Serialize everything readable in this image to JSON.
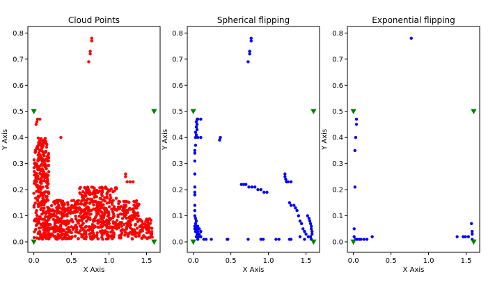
{
  "chart_data": [
    {
      "type": "scatter",
      "title": "Cloud Points",
      "xlabel": "X Axis",
      "ylabel": "Y Axis",
      "xlim": [
        -0.08,
        1.68
      ],
      "ylim": [
        -0.04,
        0.825
      ],
      "xticks": [
        "0.0",
        "0.5",
        "1.0",
        "1.5"
      ],
      "yticks": [
        "0.0",
        "0.1",
        "0.2",
        "0.3",
        "0.4",
        "0.5",
        "0.6",
        "0.7",
        "0.8"
      ],
      "grid": false,
      "series": [
        {
          "color": "#ff0000",
          "marker": "circle",
          "regions": [
            {
              "x0": 0.0,
              "x1": 0.2,
              "y0": 0.01,
              "y1": 0.4,
              "n": 320
            },
            {
              "x0": 0.2,
              "x1": 0.6,
              "y0": 0.01,
              "y1": 0.16,
              "n": 230
            },
            {
              "x0": 0.6,
              "x1": 1.1,
              "y0": 0.01,
              "y1": 0.21,
              "n": 360
            },
            {
              "x0": 1.1,
              "x1": 1.4,
              "y0": 0.01,
              "y1": 0.16,
              "n": 140
            },
            {
              "x0": 1.4,
              "x1": 1.58,
              "y0": 0.01,
              "y1": 0.09,
              "n": 60
            }
          ],
          "points": [
            [
              0.77,
              0.78
            ],
            [
              0.77,
              0.77
            ],
            [
              0.75,
              0.73
            ],
            [
              0.75,
              0.72
            ],
            [
              0.73,
              0.69
            ],
            [
              0.36,
              0.4
            ],
            [
              1.22,
              0.26
            ],
            [
              1.22,
              0.25
            ],
            [
              1.24,
              0.23
            ],
            [
              1.28,
              0.23
            ],
            [
              1.32,
              0.23
            ],
            [
              0.03,
              0.45
            ],
            [
              0.04,
              0.46
            ],
            [
              0.05,
              0.47
            ],
            [
              0.08,
              0.47
            ]
          ]
        },
        {
          "color": "#008000",
          "marker": "triangle-down",
          "points": [
            [
              0.0,
              0.5
            ],
            [
              1.6,
              0.5
            ],
            [
              0.0,
              0.0
            ],
            [
              1.6,
              0.0
            ]
          ]
        }
      ]
    },
    {
      "type": "scatter",
      "title": "Spherical flipping",
      "xlabel": "X Axis",
      "ylabel": "Y Axis",
      "xlim": [
        -0.08,
        1.68
      ],
      "ylim": [
        -0.04,
        0.825
      ],
      "xticks": [
        "0.0",
        "0.5",
        "1.0",
        "1.5"
      ],
      "yticks": [
        "0.0",
        "0.1",
        "0.2",
        "0.3",
        "0.4",
        "0.5",
        "0.6",
        "0.7",
        "0.8"
      ],
      "grid": false,
      "series": [
        {
          "color": "#0000ff",
          "marker": "circle",
          "points": [
            [
              0.77,
              0.78
            ],
            [
              0.77,
              0.77
            ],
            [
              0.75,
              0.73
            ],
            [
              0.75,
              0.72
            ],
            [
              0.73,
              0.69
            ],
            [
              0.05,
              0.47
            ],
            [
              0.06,
              0.47
            ],
            [
              0.1,
              0.47
            ],
            [
              0.04,
              0.46
            ],
            [
              0.05,
              0.45
            ],
            [
              0.04,
              0.44
            ],
            [
              0.05,
              0.43
            ],
            [
              0.03,
              0.42
            ],
            [
              0.04,
              0.41
            ],
            [
              0.03,
              0.4
            ],
            [
              0.06,
              0.4
            ],
            [
              0.1,
              0.4
            ],
            [
              0.36,
              0.4
            ],
            [
              0.35,
              0.39
            ],
            [
              0.03,
              0.37
            ],
            [
              0.02,
              0.35
            ],
            [
              0.02,
              0.34
            ],
            [
              0.02,
              0.31
            ],
            [
              0.02,
              0.26
            ],
            [
              0.02,
              0.21
            ],
            [
              0.02,
              0.19
            ],
            [
              0.02,
              0.18
            ],
            [
              0.02,
              0.14
            ],
            [
              0.02,
              0.12
            ],
            [
              0.02,
              0.1
            ],
            [
              0.03,
              0.09
            ],
            [
              0.04,
              0.08
            ],
            [
              0.03,
              0.07
            ],
            [
              0.02,
              0.06
            ],
            [
              0.04,
              0.06
            ],
            [
              0.06,
              0.06
            ],
            [
              0.02,
              0.05
            ],
            [
              0.05,
              0.05
            ],
            [
              0.08,
              0.05
            ],
            [
              0.03,
              0.04
            ],
            [
              0.06,
              0.04
            ],
            [
              0.1,
              0.04
            ],
            [
              0.05,
              0.03
            ],
            [
              0.08,
              0.03
            ],
            [
              0.04,
              0.02
            ],
            [
              0.07,
              0.02
            ],
            [
              0.1,
              0.02
            ],
            [
              0.06,
              0.01
            ],
            [
              0.14,
              0.01
            ],
            [
              0.17,
              0.01
            ],
            [
              0.24,
              0.01
            ],
            [
              0.45,
              0.01
            ],
            [
              0.46,
              0.01
            ],
            [
              0.73,
              0.01
            ],
            [
              0.9,
              0.01
            ],
            [
              0.93,
              0.01
            ],
            [
              1.1,
              0.01
            ],
            [
              1.14,
              0.01
            ],
            [
              1.28,
              0.01
            ],
            [
              1.3,
              0.01
            ],
            [
              0.64,
              0.22
            ],
            [
              0.67,
              0.22
            ],
            [
              0.7,
              0.22
            ],
            [
              0.74,
              0.21
            ],
            [
              0.78,
              0.21
            ],
            [
              0.82,
              0.21
            ],
            [
              0.86,
              0.2
            ],
            [
              0.9,
              0.2
            ],
            [
              0.94,
              0.19
            ],
            [
              0.98,
              0.19
            ],
            [
              1.22,
              0.26
            ],
            [
              1.22,
              0.25
            ],
            [
              1.23,
              0.24
            ],
            [
              1.24,
              0.23
            ],
            [
              1.26,
              0.23
            ],
            [
              1.3,
              0.23
            ],
            [
              1.28,
              0.15
            ],
            [
              1.3,
              0.14
            ],
            [
              1.34,
              0.14
            ],
            [
              1.36,
              0.13
            ],
            [
              1.38,
              0.12
            ],
            [
              1.4,
              0.1
            ],
            [
              1.42,
              0.08
            ],
            [
              1.44,
              0.07
            ],
            [
              1.46,
              0.05
            ],
            [
              1.48,
              0.04
            ],
            [
              1.52,
              0.1
            ],
            [
              1.54,
              0.09
            ],
            [
              1.55,
              0.08
            ],
            [
              1.56,
              0.07
            ],
            [
              1.57,
              0.06
            ],
            [
              1.57,
              0.05
            ],
            [
              1.58,
              0.04
            ],
            [
              1.58,
              0.03
            ],
            [
              1.56,
              0.02
            ],
            [
              1.53,
              0.02
            ],
            [
              1.5,
              0.03
            ],
            [
              1.48,
              0.01
            ],
            [
              1.42,
              0.02
            ],
            [
              1.57,
              0.01
            ]
          ]
        },
        {
          "color": "#008000",
          "marker": "triangle-down",
          "points": [
            [
              0.0,
              0.5
            ],
            [
              1.6,
              0.5
            ],
            [
              0.0,
              0.0
            ],
            [
              1.6,
              0.0
            ]
          ]
        }
      ]
    },
    {
      "type": "scatter",
      "title": "Exponential flipping",
      "xlabel": "X Axis",
      "ylabel": "Y Axis",
      "xlim": [
        -0.08,
        1.68
      ],
      "ylim": [
        -0.04,
        0.825
      ],
      "xticks": [
        "0.0",
        "0.5",
        "1.0",
        "1.5"
      ],
      "yticks": [
        "0.0",
        "0.1",
        "0.2",
        "0.3",
        "0.4",
        "0.5",
        "0.6",
        "0.7",
        "0.8"
      ],
      "grid": false,
      "series": [
        {
          "color": "#0000ff",
          "marker": "circle",
          "points": [
            [
              0.77,
              0.78
            ],
            [
              0.04,
              0.47
            ],
            [
              0.04,
              0.45
            ],
            [
              0.03,
              0.4
            ],
            [
              0.02,
              0.35
            ],
            [
              0.02,
              0.21
            ],
            [
              0.01,
              0.05
            ],
            [
              0.01,
              0.02
            ],
            [
              0.03,
              0.01
            ],
            [
              0.05,
              0.01
            ],
            [
              0.08,
              0.01
            ],
            [
              0.1,
              0.01
            ],
            [
              0.14,
              0.01
            ],
            [
              0.18,
              0.01
            ],
            [
              0.25,
              0.02
            ],
            [
              1.38,
              0.02
            ],
            [
              1.46,
              0.02
            ],
            [
              1.49,
              0.02
            ],
            [
              1.53,
              0.02
            ],
            [
              1.57,
              0.07
            ],
            [
              1.58,
              0.04
            ],
            [
              1.58,
              0.03
            ],
            [
              1.58,
              0.01
            ]
          ]
        },
        {
          "color": "#008000",
          "marker": "triangle-down",
          "points": [
            [
              0.0,
              0.5
            ],
            [
              1.6,
              0.5
            ],
            [
              0.0,
              0.0
            ],
            [
              1.6,
              0.0
            ]
          ]
        }
      ]
    }
  ]
}
